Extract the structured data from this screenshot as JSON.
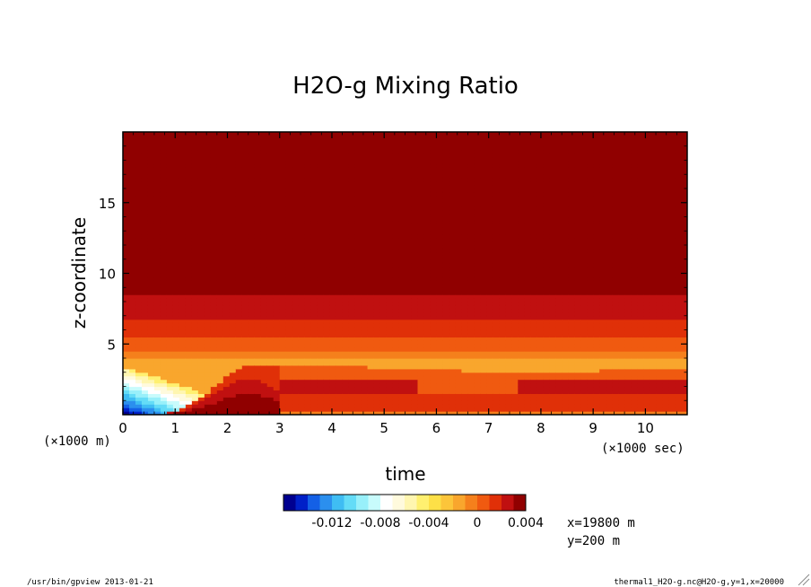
{
  "chart_data": {
    "type": "heatmap",
    "title": "H2O-g Mixing Ratio",
    "xlabel": "time",
    "x_unit_label": "(×1000 sec)",
    "y_unit_label": "(×1000 m)",
    "ylabel": "z-coordinate",
    "xlim": [
      0,
      10.8
    ],
    "ylim": [
      0,
      20
    ],
    "x_ticks": [
      0,
      1,
      2,
      3,
      4,
      5,
      6,
      7,
      8,
      9,
      10
    ],
    "x_tick_labels": [
      "0",
      "1",
      "2",
      "3",
      "4",
      "5",
      "6",
      "7",
      "8",
      "9",
      "10"
    ],
    "y_ticks": [
      5,
      10,
      15
    ],
    "y_tick_labels": [
      "5",
      "10",
      "15"
    ],
    "colorbar": {
      "levels": [
        -0.016,
        -0.014,
        -0.012,
        -0.01,
        -0.008,
        -0.006,
        -0.004,
        -0.002,
        0,
        0.002,
        0.004
      ],
      "tick_labels": [
        "-0.012",
        "-0.008",
        "-0.004",
        "0",
        "0.004"
      ],
      "tick_values": [
        -0.012,
        -0.008,
        -0.004,
        0,
        0.004
      ],
      "colors": [
        "#000090",
        "#0020c8",
        "#1460e6",
        "#2b8fee",
        "#3fbdf3",
        "#64dcf7",
        "#98f0fa",
        "#c8fbfc",
        "#ffffff",
        "#fffadd",
        "#fff6b0",
        "#fff070",
        "#fde047",
        "#fcc53a",
        "#f9a62d",
        "#f5801c",
        "#f05a10",
        "#e03008",
        "#c01010",
        "#900000"
      ]
    },
    "field_description": "Anomaly field: uniform positive (~0.0035) above z≈8.5; near-zero layered bands between 3 and 8.5; negative (blue) moist-deficit wedge near surface for t<2.3; warm (red) plume peaking near t≈2, z≈1; weak positive tail thereafter."
  },
  "annotations": {
    "x_position": "x=19800 m",
    "y_position": "y=200 m"
  },
  "footer": {
    "left": "/usr/bin/gpview  2013-01-21",
    "right": "thermal1_H2O-g.nc@H2O-g,y=1,x=20000"
  }
}
